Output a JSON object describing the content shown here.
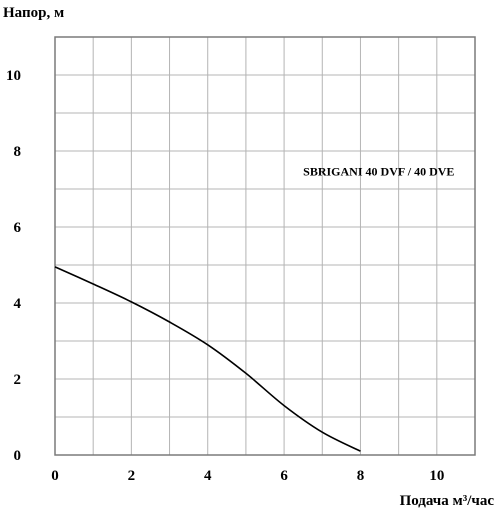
{
  "chart_data": {
    "type": "line",
    "ylabel": "Напор, м",
    "xlabel": "Подача  м³/час",
    "xlim": [
      0,
      11
    ],
    "ylim": [
      0,
      11
    ],
    "x_ticks": [
      "0",
      "2",
      "4",
      "6",
      "8",
      "10"
    ],
    "y_ticks": [
      "0",
      "2",
      "4",
      "6",
      "8",
      "10"
    ],
    "grid": true,
    "grid_minor_step": 1,
    "colors": {
      "grid": "#b4b4b4",
      "frame": "#7a7a7a",
      "line": "#000000"
    },
    "series": [
      {
        "name": "SBRIGANI 40 DVF / 40 DVE",
        "x": [
          0,
          1,
          2,
          3,
          4,
          5,
          6,
          7,
          8
        ],
        "y": [
          4.95,
          4.5,
          4.03,
          3.5,
          2.9,
          2.15,
          1.3,
          0.6,
          0.1
        ]
      }
    ]
  }
}
